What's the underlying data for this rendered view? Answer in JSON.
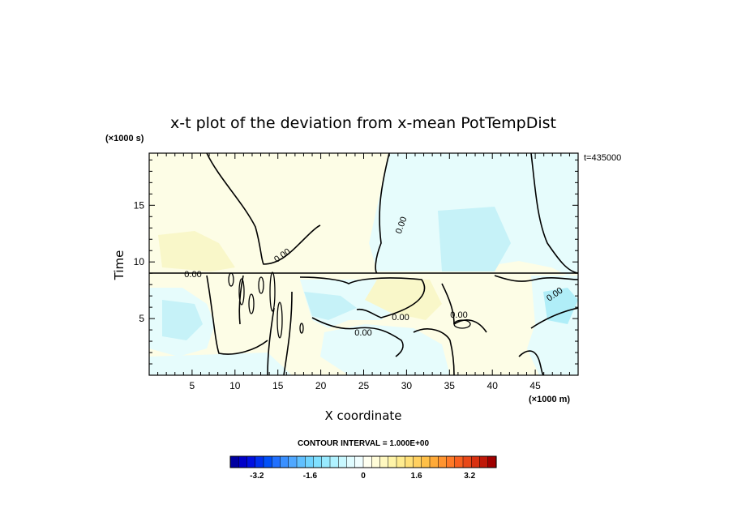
{
  "chart_data": {
    "type": "heatmap",
    "title": "x-t plot of the deviation from x-mean PotTempDist",
    "xlabel": "X coordinate",
    "ylabel": "Time",
    "x_unit": "(×1000 m)",
    "y_unit": "(×1000 s)",
    "time_stamp": "t=435000",
    "xlim": [
      0,
      50
    ],
    "ylim": [
      0,
      19.6
    ],
    "xticks": [
      5,
      10,
      15,
      20,
      25,
      30,
      35,
      40,
      45
    ],
    "yticks": [
      5,
      10,
      15
    ],
    "contour_interval_label": "CONTOUR INTERVAL = 1.000E+00",
    "contour_labels": [
      "0.00",
      "0.00",
      "0.00",
      "0.00",
      "0.00",
      "0.00",
      "0.00"
    ],
    "colorbar": {
      "min": -4.0,
      "max": 4.0,
      "ticks": [
        "-3.2",
        "-1.6",
        "0",
        "1.6",
        "3.2"
      ],
      "tick_values": [
        -3.2,
        -1.6,
        0,
        1.6,
        3.2
      ]
    }
  }
}
